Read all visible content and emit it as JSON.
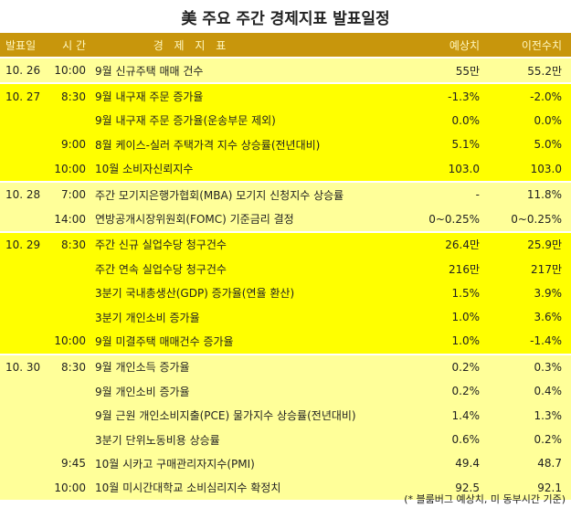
{
  "title": "美 주요 주간 경제지표 발표일정",
  "header": {
    "date": "발표일",
    "time": "시 간",
    "indicator": "경 제 지 표",
    "forecast": "예상치",
    "previous": "이전수치"
  },
  "colors": {
    "header_bg": "#C8960C",
    "light_row": "#FFFF99",
    "bright_row": "#FFFF00"
  },
  "groups": [
    {
      "style": "light",
      "rows": [
        {
          "date": "10. 26",
          "time": "10:00",
          "indicator": "9월 신규주택 매매 건수",
          "forecast": "55만",
          "previous": "55.2만"
        }
      ]
    },
    {
      "style": "bright",
      "rows": [
        {
          "date": "10. 27",
          "time": "8:30",
          "indicator": "9월 내구재 주문 증가율",
          "forecast": "-1.3%",
          "previous": "-2.0%"
        },
        {
          "date": "",
          "time": "",
          "indicator": "9월 내구재 주문 증가율(운송부문 제외)",
          "forecast": "0.0%",
          "previous": "0.0%"
        },
        {
          "date": "",
          "time": "9:00",
          "indicator": "8월 케이스-실러 주택가격 지수 상승률(전년대비)",
          "forecast": "5.1%",
          "previous": "5.0%"
        },
        {
          "date": "",
          "time": "10:00",
          "indicator": "10월 소비자신뢰지수",
          "forecast": "103.0",
          "previous": "103.0"
        }
      ]
    },
    {
      "style": "light",
      "rows": [
        {
          "date": "10. 28",
          "time": "7:00",
          "indicator": "주간 모기지은행가협회(MBA) 모기지 신청지수 상승률",
          "forecast": "-",
          "previous": "11.8%"
        },
        {
          "date": "",
          "time": "14:00",
          "indicator": "연방공개시장위원회(FOMC) 기준금리 결정",
          "forecast": "0~0.25%",
          "previous": "0~0.25%"
        }
      ]
    },
    {
      "style": "bright",
      "rows": [
        {
          "date": "10. 29",
          "time": "8:30",
          "indicator": "주간 신규 실업수당 청구건수",
          "forecast": "26.4만",
          "previous": "25.9만"
        },
        {
          "date": "",
          "time": "",
          "indicator": "주간 연속 실업수당 청구건수",
          "forecast": "216만",
          "previous": "217만"
        },
        {
          "date": "",
          "time": "",
          "indicator": "3분기 국내총생산(GDP) 증가율(연율 환산)",
          "forecast": "1.5%",
          "previous": "3.9%"
        },
        {
          "date": "",
          "time": "",
          "indicator": "3분기 개인소비 증가율",
          "forecast": "1.0%",
          "previous": "3.6%"
        },
        {
          "date": "",
          "time": "10:00",
          "indicator": "9월 미결주택 매매건수 증가율",
          "forecast": "1.0%",
          "previous": "-1.4%"
        }
      ]
    },
    {
      "style": "light",
      "rows": [
        {
          "date": "10. 30",
          "time": "8:30",
          "indicator": "9월 개인소득 증가율",
          "forecast": "0.2%",
          "previous": "0.3%"
        },
        {
          "date": "",
          "time": "",
          "indicator": "9월 개인소비 증가율",
          "forecast": "0.2%",
          "previous": "0.4%"
        },
        {
          "date": "",
          "time": "",
          "indicator": "9월 근원 개인소비지출(PCE) 물가지수 상승률(전년대비)",
          "forecast": "1.4%",
          "previous": "1.3%"
        },
        {
          "date": "",
          "time": "",
          "indicator": "3분기 단위노동비용 상승률",
          "forecast": "0.6%",
          "previous": "0.2%"
        },
        {
          "date": "",
          "time": "9:45",
          "indicator": "10월 시카고 구매관리자지수(PMI)",
          "forecast": "49.4",
          "previous": "48.7"
        },
        {
          "date": "",
          "time": "10:00",
          "indicator": "10월 미시간대학교 소비심리지수 확정치",
          "forecast": "92.5",
          "previous": "92.1"
        }
      ]
    }
  ],
  "footnote": "(* 블룸버그 예상치, 미 동부시간 기준)"
}
